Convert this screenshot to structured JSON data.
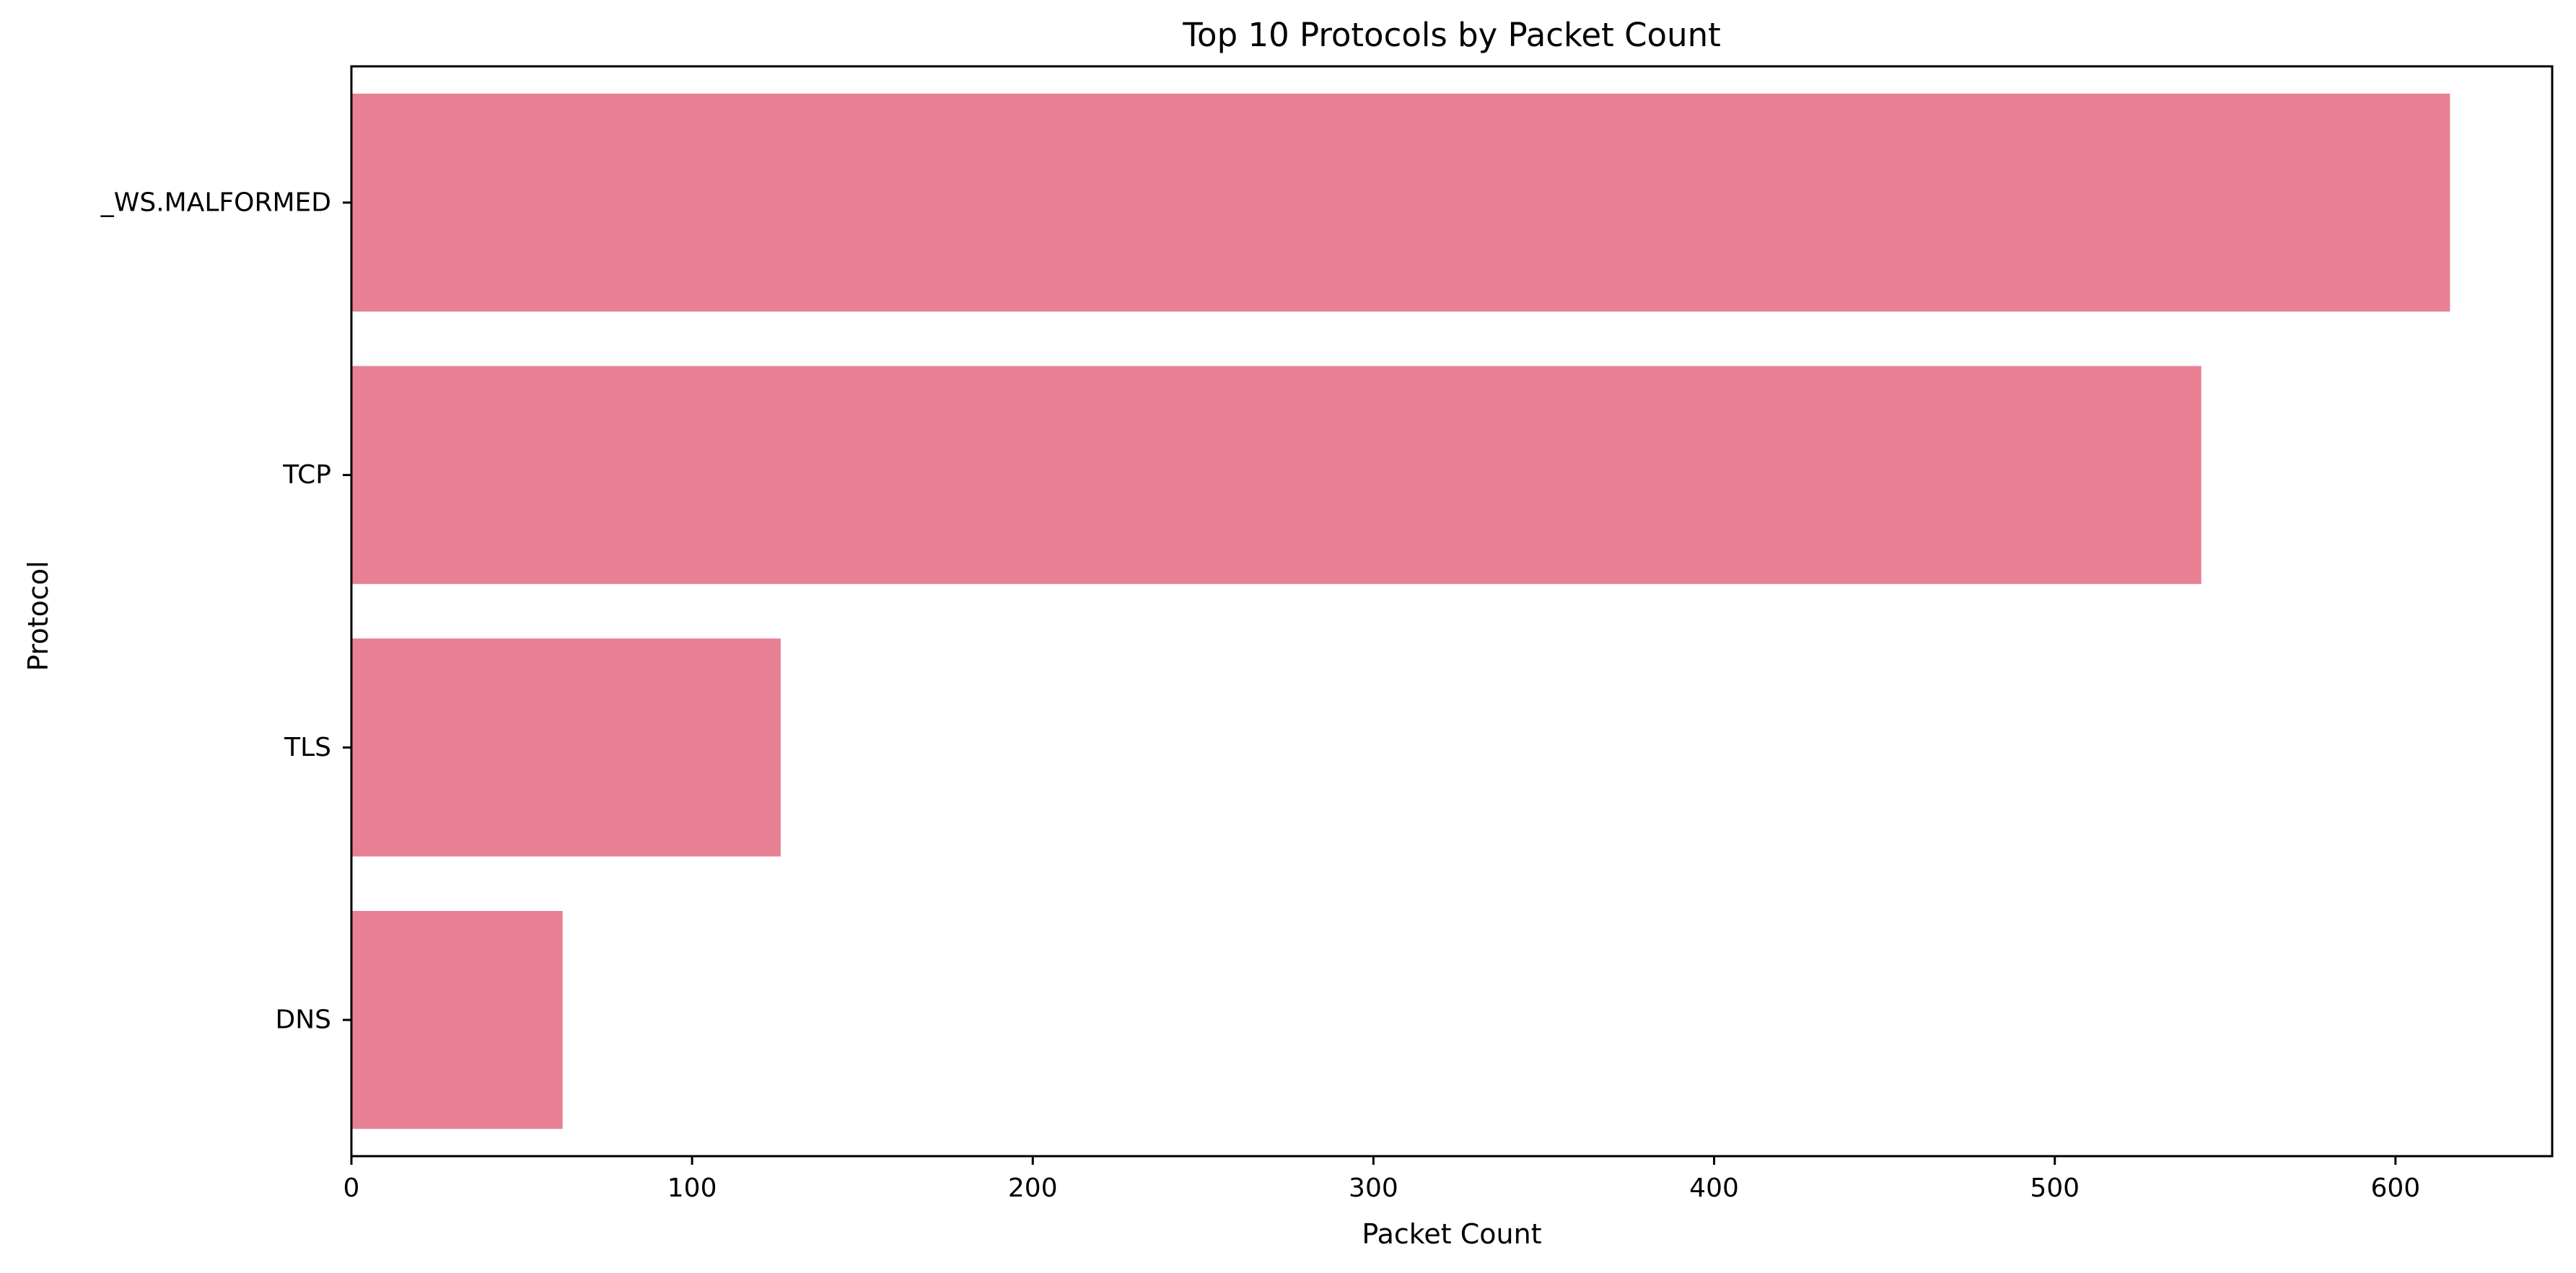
{
  "chart_data": {
    "type": "bar",
    "orientation": "horizontal",
    "title": "Top 10 Protocols by Packet Count",
    "xlabel": "Packet Count",
    "ylabel": "Protocol",
    "categories": [
      "_WS.MALFORMED",
      "TCP",
      "TLS",
      "DNS"
    ],
    "values": [
      616,
      543,
      126,
      62
    ],
    "xlim": [
      0,
      646
    ],
    "xticks": [
      0,
      100,
      200,
      300,
      400,
      500,
      600
    ],
    "grid": false,
    "bar_color": "#e88093"
  }
}
